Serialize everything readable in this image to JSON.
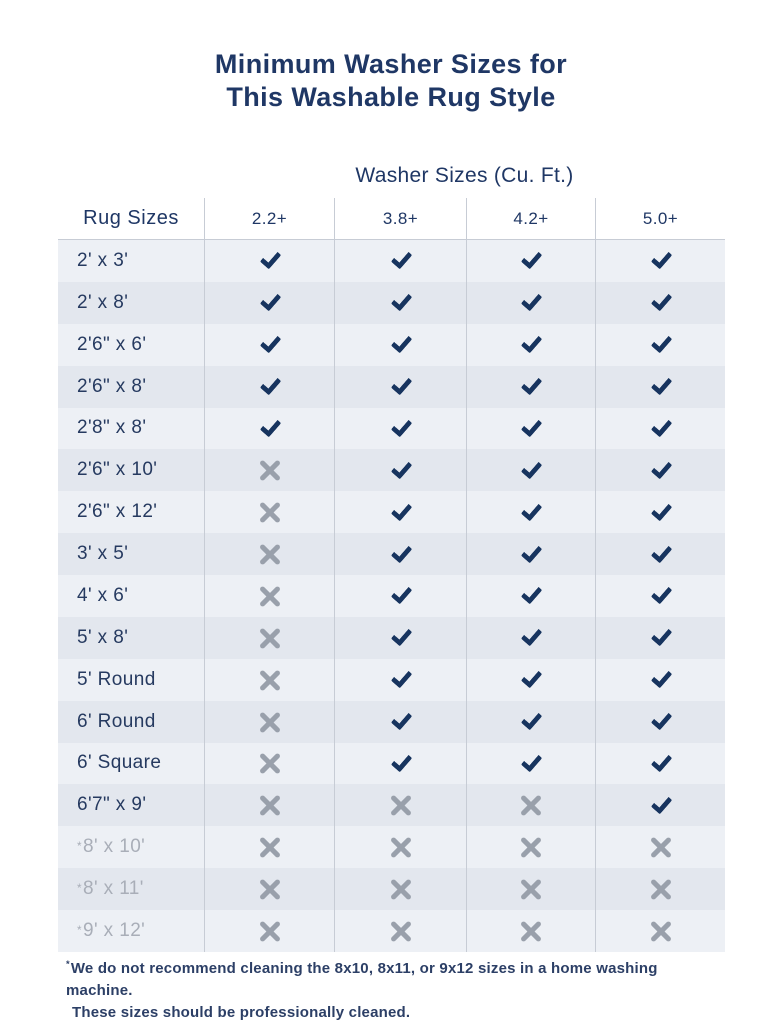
{
  "title": {
    "line1": "Minimum Washer Sizes for",
    "line2": "This Washable Rug Style"
  },
  "table": {
    "group_header": "Washer Sizes (Cu. Ft.)",
    "columns": [
      "Rug Sizes",
      "2.2+",
      "3.8+",
      "4.2+",
      "5.0+"
    ],
    "rows": [
      {
        "prefix": "",
        "label": "2' x 3'",
        "muted": false,
        "cells": [
          "check",
          "check",
          "check",
          "check"
        ]
      },
      {
        "prefix": "",
        "label": "2' x 8'",
        "muted": false,
        "cells": [
          "check",
          "check",
          "check",
          "check"
        ]
      },
      {
        "prefix": "",
        "label": "2'6\" x 6'",
        "muted": false,
        "cells": [
          "check",
          "check",
          "check",
          "check"
        ]
      },
      {
        "prefix": "",
        "label": "2'6\" x 8'",
        "muted": false,
        "cells": [
          "check",
          "check",
          "check",
          "check"
        ]
      },
      {
        "prefix": "",
        "label": "2'8\" x 8'",
        "muted": false,
        "cells": [
          "check",
          "check",
          "check",
          "check"
        ]
      },
      {
        "prefix": "",
        "label": "2'6\" x 10'",
        "muted": false,
        "cells": [
          "x",
          "check",
          "check",
          "check"
        ]
      },
      {
        "prefix": "",
        "label": "2'6\" x 12'",
        "muted": false,
        "cells": [
          "x",
          "check",
          "check",
          "check"
        ]
      },
      {
        "prefix": "",
        "label": "3' x 5'",
        "muted": false,
        "cells": [
          "x",
          "check",
          "check",
          "check"
        ]
      },
      {
        "prefix": "",
        "label": "4' x 6'",
        "muted": false,
        "cells": [
          "x",
          "check",
          "check",
          "check"
        ]
      },
      {
        "prefix": "",
        "label": "5' x 8'",
        "muted": false,
        "cells": [
          "x",
          "check",
          "check",
          "check"
        ]
      },
      {
        "prefix": "",
        "label": "5' Round",
        "muted": false,
        "cells": [
          "x",
          "check",
          "check",
          "check"
        ]
      },
      {
        "prefix": "",
        "label": "6' Round",
        "muted": false,
        "cells": [
          "x",
          "check",
          "check",
          "check"
        ]
      },
      {
        "prefix": "",
        "label": "6' Square",
        "muted": false,
        "cells": [
          "x",
          "check",
          "check",
          "check"
        ]
      },
      {
        "prefix": "",
        "label": "6'7\" x 9'",
        "muted": false,
        "cells": [
          "x",
          "x",
          "x",
          "check"
        ]
      },
      {
        "prefix": "*",
        "label": "8' x 10'",
        "muted": true,
        "cells": [
          "x",
          "x",
          "x",
          "x"
        ]
      },
      {
        "prefix": "*",
        "label": "8' x 11'",
        "muted": true,
        "cells": [
          "x",
          "x",
          "x",
          "x"
        ]
      },
      {
        "prefix": "*",
        "label": "9' x 12'",
        "muted": true,
        "cells": [
          "x",
          "x",
          "x",
          "x"
        ]
      }
    ]
  },
  "footnote": {
    "asterisk": "*",
    "line1": "We do not recommend cleaning the 8x10, 8x11, or 9x12 sizes in a home washing machine.",
    "line2": "These sizes should be professionally cleaned."
  },
  "colors": {
    "navy": "#1f3765",
    "label": "#263a60",
    "check": "#17345f",
    "x_gray": "#99a0ab",
    "muted": "#a9aeb8",
    "row_light": "#edf0f5",
    "row_dark": "#e3e7ee",
    "divider": "#c7ccd5",
    "footnote": "#2c3f66"
  }
}
